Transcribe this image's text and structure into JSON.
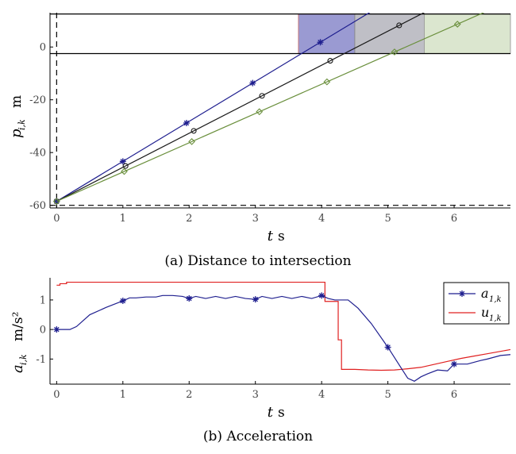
{
  "chart_data": [
    {
      "type": "line",
      "title": "(a) Distance to intersection",
      "xlabel": "t",
      "xlabel_unit": "s",
      "ylabel": "p",
      "ylabel_sub": "i,k",
      "ylabel_unit": "m",
      "xlim": [
        -0.1,
        6.85
      ],
      "ylim": [
        -61,
        13
      ],
      "xticks": [
        "0",
        "1",
        "2",
        "3",
        "4",
        "5",
        "6"
      ],
      "yticks": [
        "-60",
        "-40",
        "-20",
        "0"
      ],
      "ytick_values": [
        -60,
        -40,
        -20,
        0
      ],
      "intersection_bounds": [
        -2.5,
        12.5
      ],
      "start_line": -60,
      "series": [
        {
          "color": "#1f1f8f",
          "marker": "star",
          "start": [
            0,
            -58.5
          ],
          "slope": 15.15,
          "markers_x": [
            0,
            1,
            1.96,
            2.96,
            3.98
          ],
          "zone": [
            3.65,
            4.65
          ],
          "zone_color": "#9a9ad2",
          "zone_edge": "#c87878"
        },
        {
          "color": "#1a1a1a",
          "marker": "circle",
          "start": [
            0,
            -58.5
          ],
          "slope": 12.9,
          "markers_x": [
            0,
            1.04,
            2.07,
            3.1,
            4.13,
            5.17
          ],
          "zone": [
            4.5,
            5.6
          ],
          "zone_color": "#bfbfc6",
          "zone_edge": "#8a8a8a"
        },
        {
          "color": "#6a8f3c",
          "marker": "diamond",
          "start": [
            0,
            -58.5
          ],
          "slope": 11.1,
          "markers_x": [
            0,
            1.02,
            2.04,
            3.06,
            4.08,
            5.1,
            6.05
          ],
          "zone": [
            5.55,
            6.85
          ],
          "zone_color": "#dbe6cf",
          "zone_edge": "#a0a0a0"
        }
      ]
    },
    {
      "type": "line",
      "title": "(b) Acceleration",
      "xlabel": "t",
      "xlabel_unit": "s",
      "ylabel": "a",
      "ylabel_sub": "i,k",
      "ylabel_unit": "m/s²",
      "xlim": [
        -0.1,
        6.85
      ],
      "ylim": [
        -1.85,
        1.75
      ],
      "xticks": [
        "0",
        "1",
        "2",
        "3",
        "4",
        "5",
        "6"
      ],
      "yticks": [
        "-1",
        "0",
        "1"
      ],
      "ytick_values": [
        -1,
        0,
        1
      ],
      "legend_position": "top-right",
      "series": [
        {
          "name": "a",
          "sub": "1,k",
          "color": "#1f1f8f",
          "marker": "star",
          "x": [
            0,
            0.2,
            0.3,
            0.5,
            0.75,
            1,
            1.1,
            1.2,
            1.35,
            1.5,
            1.6,
            1.75,
            1.9,
            2,
            2.1,
            2.25,
            2.4,
            2.55,
            2.7,
            2.85,
            3,
            3.1,
            3.25,
            3.4,
            3.55,
            3.7,
            3.85,
            4,
            4.1,
            4.2,
            4.4,
            4.55,
            4.75,
            5,
            5.2,
            5.3,
            5.4,
            5.5,
            5.6,
            5.75,
            5.9,
            6,
            6.2,
            6.4,
            6.5,
            6.7,
            6.85
          ],
          "y": [
            0,
            0,
            0.1,
            0.5,
            0.75,
            0.97,
            1.07,
            1.07,
            1.1,
            1.1,
            1.15,
            1.15,
            1.12,
            1.05,
            1.12,
            1.05,
            1.12,
            1.05,
            1.12,
            1.05,
            1.02,
            1.12,
            1.05,
            1.12,
            1.05,
            1.12,
            1.05,
            1.15,
            1.05,
            1.0,
            1.0,
            0.72,
            0.2,
            -0.6,
            -1.3,
            -1.65,
            -1.75,
            -1.6,
            -1.5,
            -1.37,
            -1.4,
            -1.17,
            -1.17,
            -1.05,
            -1.0,
            -0.88,
            -0.85
          ],
          "markers_x": [
            0,
            1,
            2,
            3,
            4,
            5,
            6
          ]
        },
        {
          "name": "u",
          "sub": "1,k",
          "color": "#e02020",
          "marker": "none",
          "x": [
            0,
            0.05,
            0.05,
            0.15,
            0.15,
            4.05,
            4.05,
            4.25,
            4.25,
            4.3,
            4.3,
            4.5,
            4.7,
            4.9,
            5.1,
            5.3,
            5.5,
            5.7,
            5.9,
            6.1,
            6.3,
            6.5,
            6.7,
            6.85
          ],
          "y": [
            1.5,
            1.5,
            1.55,
            1.55,
            1.6,
            1.6,
            0.95,
            0.95,
            -0.35,
            -0.35,
            -1.35,
            -1.35,
            -1.37,
            -1.38,
            -1.37,
            -1.33,
            -1.28,
            -1.18,
            -1.08,
            -0.98,
            -0.9,
            -0.82,
            -0.74,
            -0.68
          ]
        }
      ]
    }
  ]
}
